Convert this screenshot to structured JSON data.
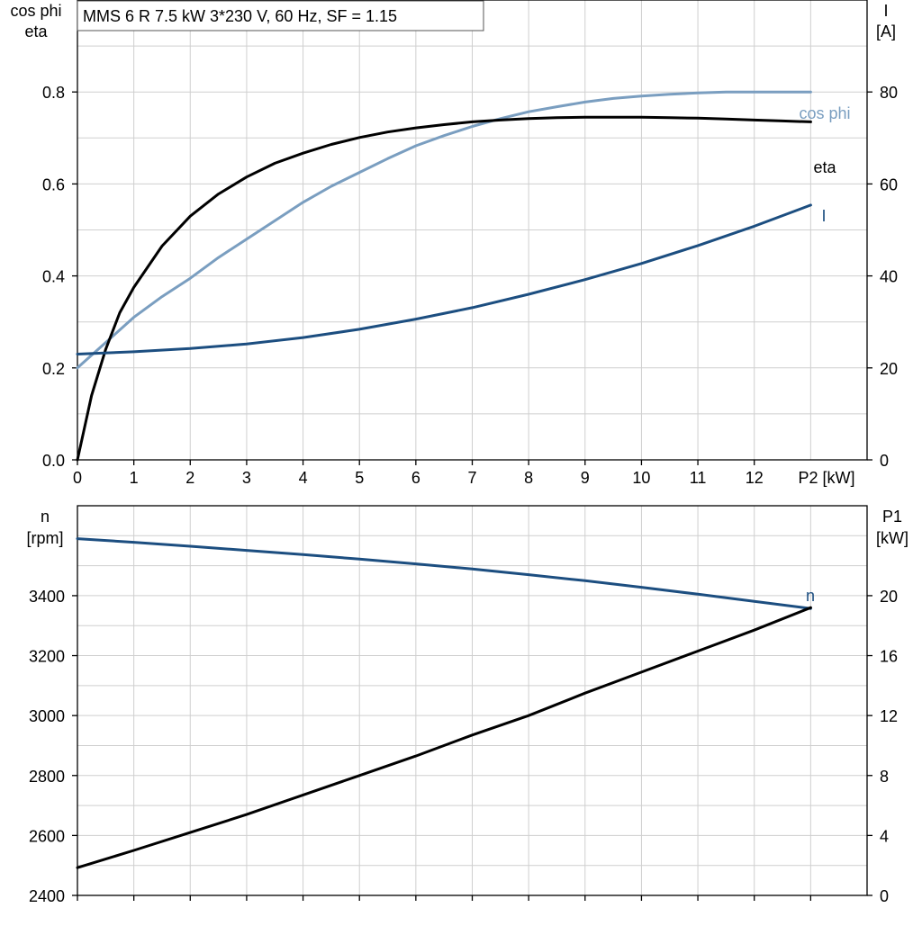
{
  "chart_data": [
    {
      "type": "line",
      "title": "MMS 6 R   7.5 kW   3*230 V, 60 Hz, SF = 1.15",
      "xlabel": "P2 [kW]",
      "ylabel_left": [
        "cos phi",
        "eta"
      ],
      "ylabel_right": [
        "I",
        "[A]"
      ],
      "xlim": [
        0,
        14
      ],
      "ylim_left": [
        0,
        1.0
      ],
      "ylim_right": [
        0,
        100
      ],
      "x_ticks": [
        "0",
        "1",
        "2",
        "3",
        "4",
        "5",
        "6",
        "7",
        "8",
        "9",
        "10",
        "11",
        "12"
      ],
      "y_ticks_left": [
        "0.0",
        "0.2",
        "0.4",
        "0.6",
        "0.8"
      ],
      "y_ticks_right": [
        "0",
        "20",
        "40",
        "60",
        "80"
      ],
      "grid": true,
      "series": [
        {
          "name": "cos phi",
          "axis": "left",
          "color": "#7a9ec0",
          "x": [
            0,
            0.5,
            1,
            1.5,
            2,
            2.5,
            3,
            3.5,
            4,
            4.5,
            5,
            5.5,
            6,
            6.5,
            7,
            7.5,
            8,
            8.5,
            9,
            9.5,
            10,
            10.5,
            11,
            11.5,
            12,
            12.5,
            13
          ],
          "y": [
            0.2,
            0.255,
            0.31,
            0.355,
            0.395,
            0.44,
            0.48,
            0.52,
            0.56,
            0.595,
            0.625,
            0.655,
            0.683,
            0.705,
            0.725,
            0.742,
            0.757,
            0.768,
            0.778,
            0.786,
            0.791,
            0.795,
            0.798,
            0.8,
            0.8,
            0.8,
            0.8
          ]
        },
        {
          "name": "eta",
          "axis": "left",
          "color": "#000000",
          "x": [
            0,
            0.25,
            0.5,
            0.75,
            1,
            1.5,
            2,
            2.5,
            3,
            3.5,
            4,
            4.5,
            5,
            5.5,
            6,
            6.5,
            7,
            7.5,
            8,
            8.5,
            9,
            9.5,
            10,
            10.5,
            11,
            11.5,
            12,
            12.5,
            13
          ],
          "y": [
            0.0,
            0.14,
            0.24,
            0.32,
            0.375,
            0.465,
            0.53,
            0.578,
            0.615,
            0.645,
            0.667,
            0.686,
            0.701,
            0.713,
            0.722,
            0.729,
            0.735,
            0.739,
            0.742,
            0.744,
            0.745,
            0.745,
            0.745,
            0.744,
            0.743,
            0.741,
            0.739,
            0.737,
            0.735
          ]
        },
        {
          "name": "I",
          "axis": "right",
          "color": "#1c4e80",
          "x": [
            0,
            1,
            2,
            3,
            4,
            5,
            6,
            7,
            8,
            9,
            10,
            11,
            12,
            13
          ],
          "y": [
            23,
            23.5,
            24.2,
            25.2,
            26.6,
            28.4,
            30.6,
            33.1,
            36.0,
            39.2,
            42.7,
            46.6,
            50.8,
            55.4
          ]
        }
      ]
    },
    {
      "type": "line",
      "xlim": [
        0,
        14
      ],
      "ylabel_left": [
        "n",
        "[rpm]"
      ],
      "ylabel_right": [
        "P1",
        "[kW]"
      ],
      "ylim_left": [
        2400,
        3700
      ],
      "ylim_right": [
        0,
        26
      ],
      "y_ticks_left": [
        "2400",
        "2600",
        "2800",
        "3000",
        "3200",
        "3400"
      ],
      "y_ticks_right": [
        "0",
        "4",
        "8",
        "12",
        "16",
        "20"
      ],
      "grid": true,
      "series": [
        {
          "name": "n",
          "axis": "left",
          "color": "#1c4e80",
          "x": [
            0,
            1,
            2,
            3,
            4,
            5,
            6,
            7,
            8,
            9,
            10,
            11,
            12,
            13
          ],
          "y": [
            3590,
            3578,
            3565,
            3551,
            3537,
            3522,
            3506,
            3489,
            3470,
            3450,
            3428,
            3405,
            3381,
            3357
          ]
        },
        {
          "axis": "right",
          "color": "#000000",
          "x": [
            0,
            1,
            2,
            3,
            4,
            5,
            6,
            7,
            8,
            9,
            10,
            11,
            12,
            13
          ],
          "y": [
            1.85,
            3.0,
            4.2,
            5.4,
            6.7,
            8.0,
            9.3,
            10.7,
            12.0,
            13.5,
            14.9,
            16.3,
            17.7,
            19.2
          ]
        }
      ]
    }
  ]
}
